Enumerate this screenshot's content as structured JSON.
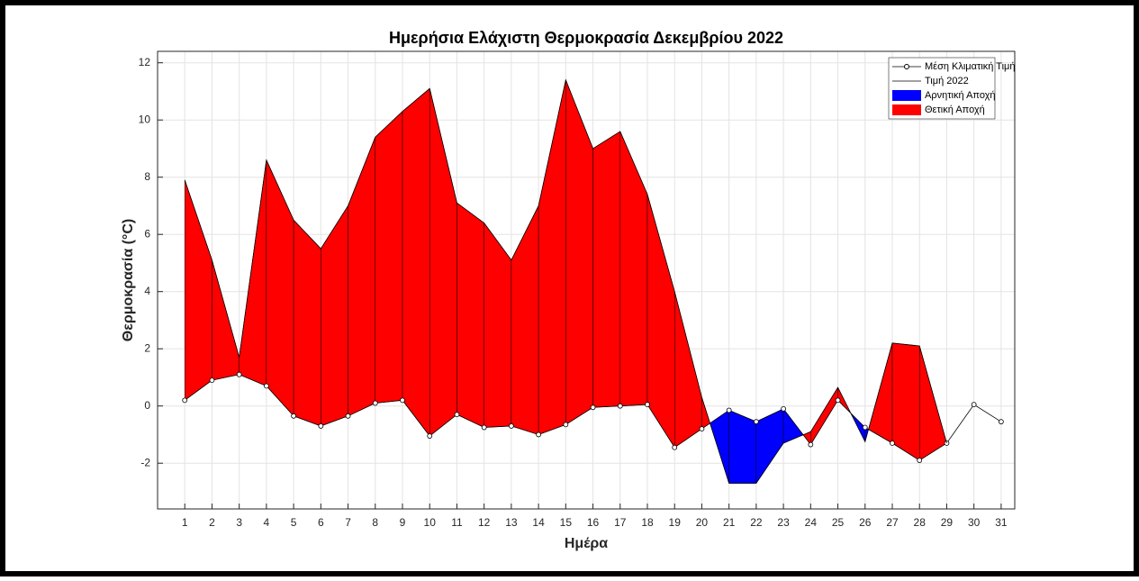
{
  "chart_data": {
    "type": "line",
    "title": "Ημερήσια Ελάχιστη Θερμοκρασία Δεκεμβρίου 2022",
    "xlabel": "Ημέρα",
    "ylabel": "Θερμοκρασία (°C)",
    "x": [
      1,
      2,
      3,
      4,
      5,
      6,
      7,
      8,
      9,
      10,
      11,
      12,
      13,
      14,
      15,
      16,
      17,
      18,
      19,
      20,
      21,
      22,
      23,
      24,
      25,
      26,
      27,
      28,
      29,
      30,
      31
    ],
    "series": [
      {
        "name": "Μέση Κλιματική Τιμή",
        "color": "#000000",
        "marker": "circle",
        "values": [
          0.2,
          0.9,
          1.1,
          0.7,
          -0.35,
          -0.7,
          -0.35,
          0.1,
          0.2,
          -1.05,
          -0.3,
          -0.75,
          -0.7,
          -1.0,
          -0.65,
          -0.05,
          0.0,
          0.05,
          -1.45,
          -0.8,
          -0.15,
          -0.55,
          -0.1,
          -1.35,
          0.2,
          -0.75,
          -1.3,
          -1.9,
          -1.3,
          0.05,
          -0.55
        ]
      },
      {
        "name": "Τιμή 2022",
        "color": "#000000",
        "values": [
          7.9,
          5.1,
          1.7,
          8.6,
          6.5,
          5.5,
          7.0,
          9.4,
          10.3,
          11.1,
          7.1,
          6.4,
          5.1,
          7.0,
          11.4,
          9.0,
          9.6,
          7.4,
          4.0,
          0.3,
          -2.7,
          -2.7,
          -1.3,
          -0.9,
          0.65,
          -1.25,
          2.2,
          2.1,
          -1.3,
          null,
          null
        ]
      }
    ],
    "areas": [
      {
        "name": "Αρνητική Αποχή",
        "color": "#0000ff"
      },
      {
        "name": "Θετική Αποχή",
        "color": "#ff0000"
      }
    ],
    "xlim": [
      0,
      31.5
    ],
    "ylim": [
      -3.6,
      12.4
    ],
    "xticks": [
      1,
      2,
      3,
      4,
      5,
      6,
      7,
      8,
      9,
      10,
      11,
      12,
      13,
      14,
      15,
      16,
      17,
      18,
      19,
      20,
      21,
      22,
      23,
      24,
      25,
      26,
      27,
      28,
      29,
      30,
      31
    ],
    "yticks": [
      -2,
      0,
      2,
      4,
      6,
      8,
      10,
      12
    ],
    "grid": true,
    "legend": "top-right"
  }
}
